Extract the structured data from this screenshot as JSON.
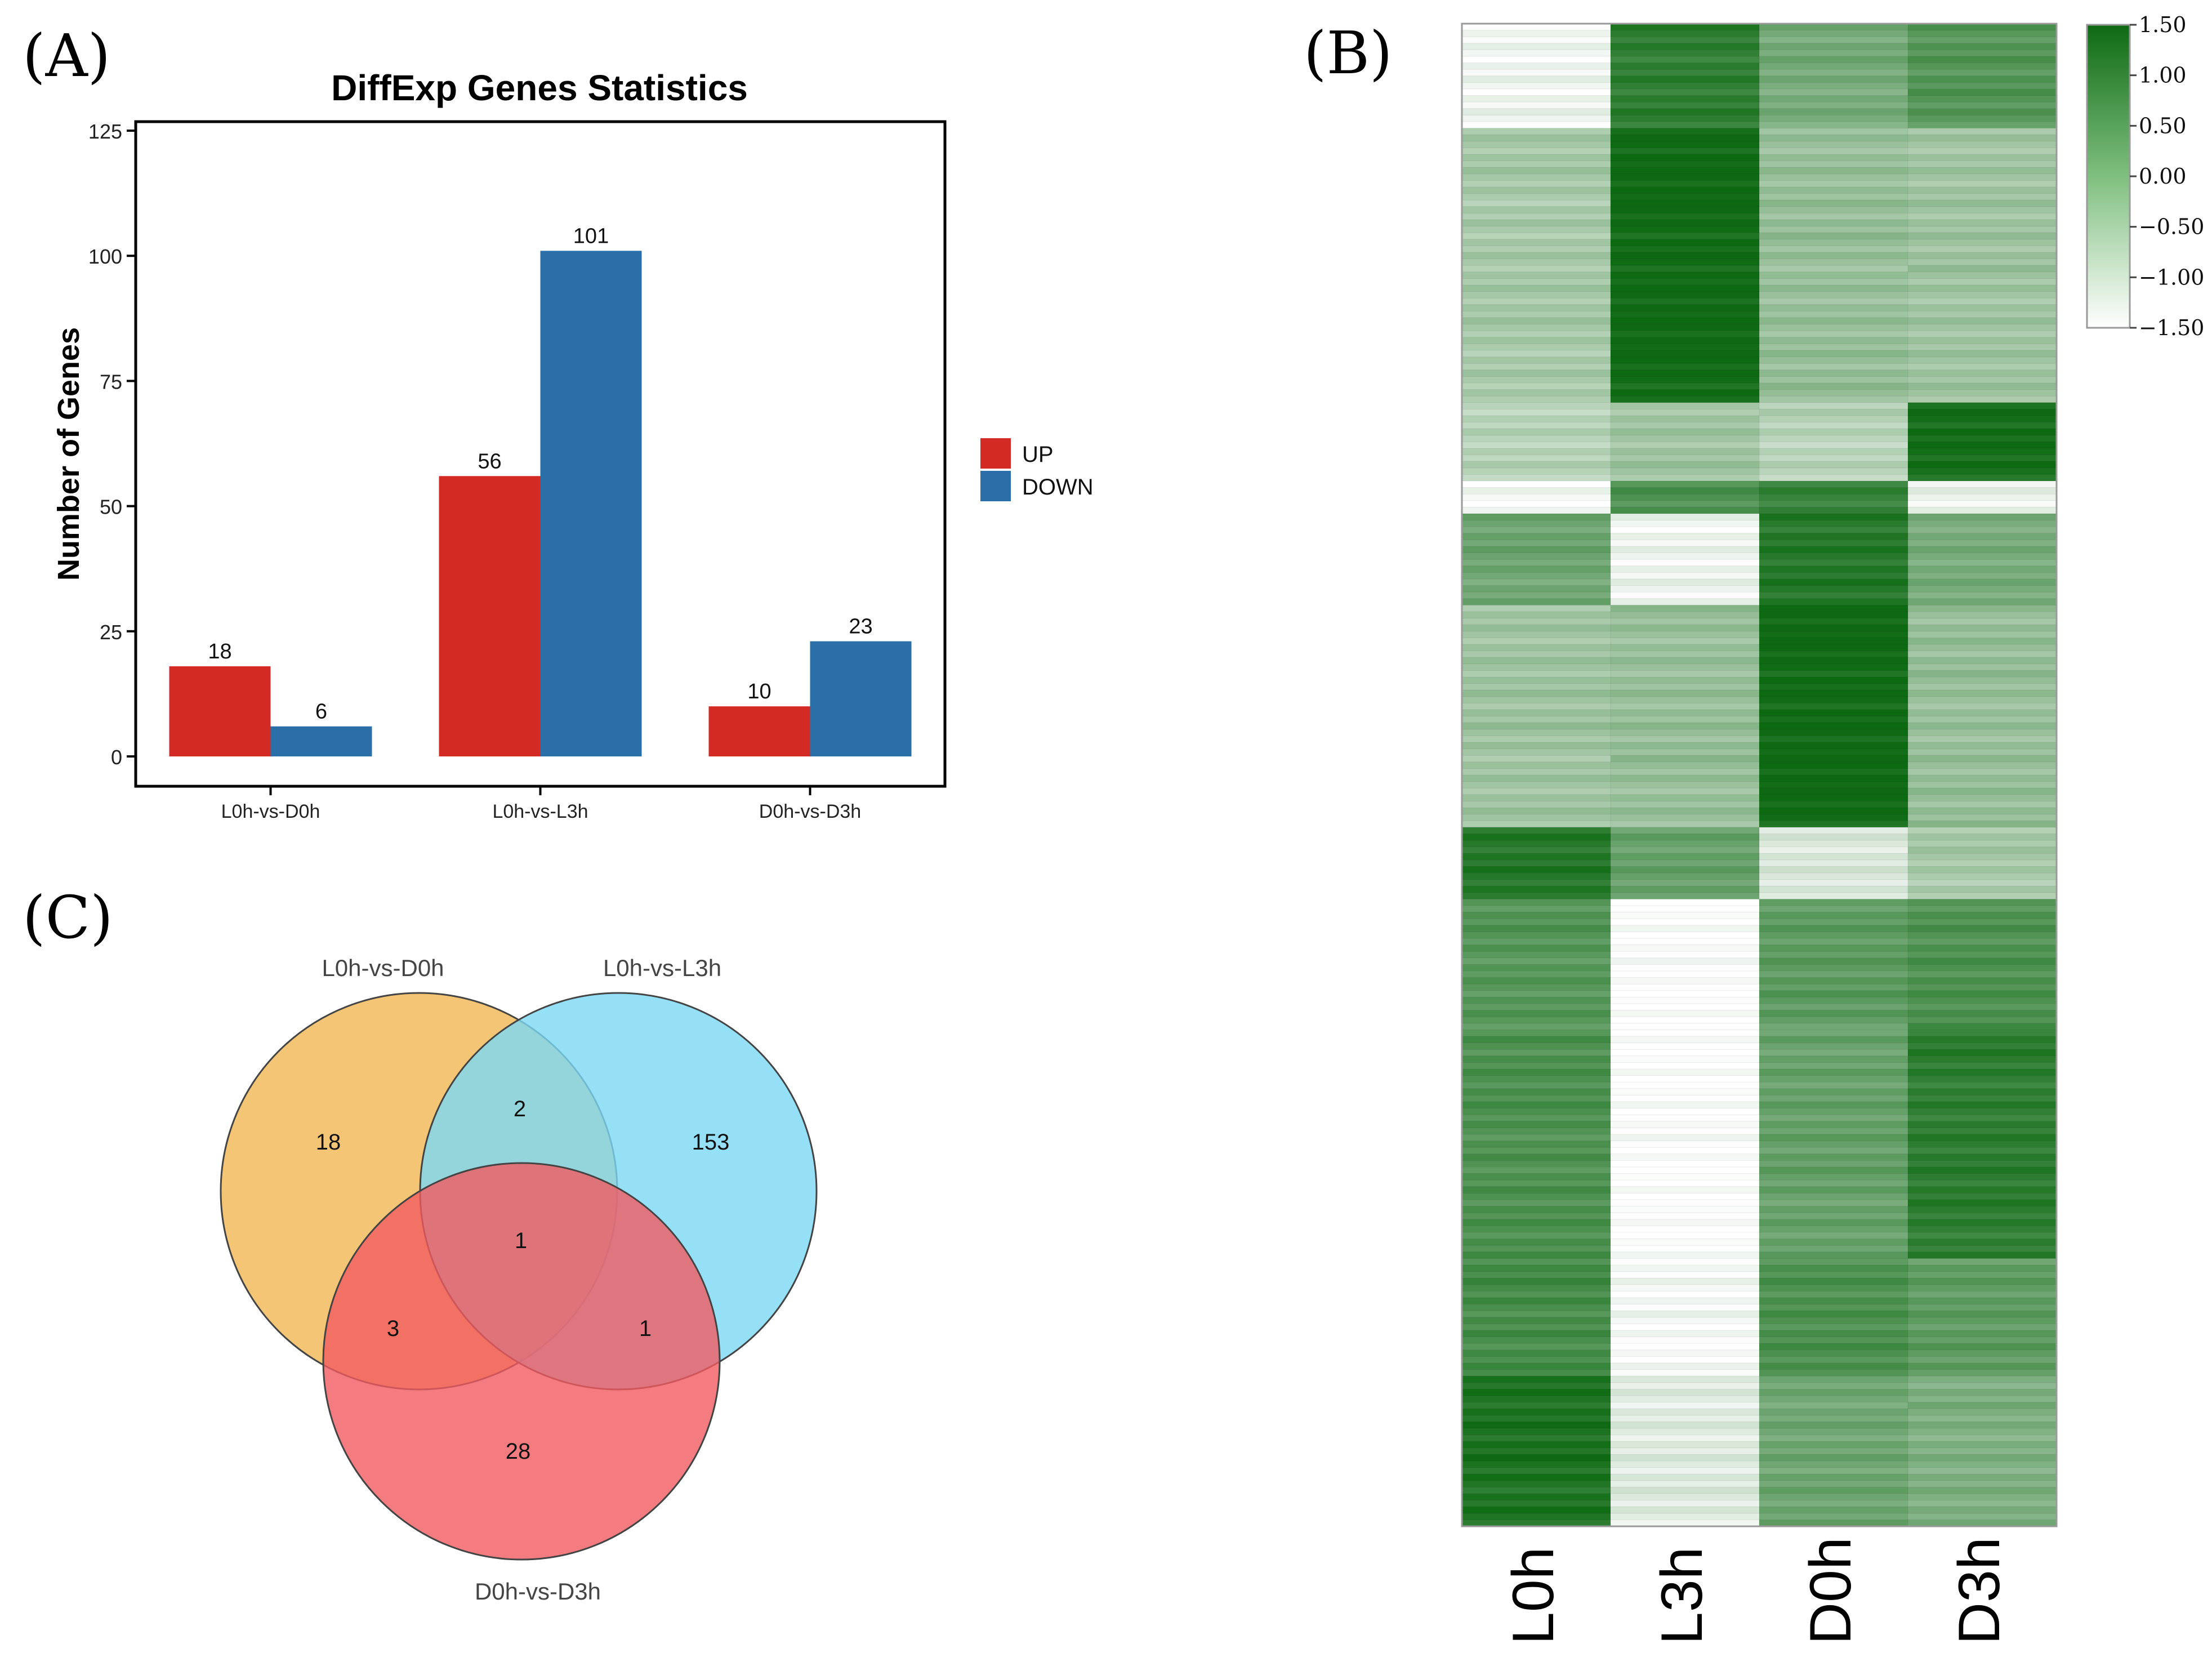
{
  "panel_labels": {
    "a": "(A)",
    "b": "(B)",
    "c": "(C)"
  },
  "colors": {
    "up": "#d42a26",
    "down": "#2a6fa7",
    "venn_a": "#f0b652",
    "venn_b": "#7ad8f5",
    "venn_c": "#f15a60",
    "heat_high": "#0d6a12",
    "heat_low": "#ffffff"
  },
  "chart_data": [
    {
      "type": "bar",
      "title": "DiffExp Genes Statistics",
      "xlabel": "",
      "ylabel": "Number of Genes",
      "ylim": [
        0,
        125
      ],
      "yticks": [
        "0",
        "25",
        "50",
        "75",
        "100",
        "125"
      ],
      "categories": [
        "L0h-vs-D0h",
        "L0h-vs-L3h",
        "D0h-vs-D3h"
      ],
      "series": [
        {
          "name": "UP",
          "values": [
            18,
            56,
            10
          ]
        },
        {
          "name": "DOWN",
          "values": [
            6,
            101,
            23
          ]
        }
      ],
      "legend": "right",
      "grid": false
    },
    {
      "type": "heatmap",
      "columns": [
        "L0h",
        "L3h",
        "D0h",
        "D3h"
      ],
      "colorbar": {
        "min": -1.5,
        "max": 1.5,
        "ticks": [
          "1.50",
          "1.00",
          "0.50",
          "0.00",
          "−0.50",
          "−1.00",
          "−1.50"
        ]
      },
      "row_count": 230,
      "row_blocks": [
        {
          "rows": 16,
          "values": [
            -1.3,
            1.1,
            0.2,
            0.6
          ]
        },
        {
          "rows": 42,
          "values": [
            -0.4,
            1.5,
            -0.2,
            -0.3
          ]
        },
        {
          "rows": 12,
          "values": [
            -0.6,
            -0.3,
            -0.6,
            1.4
          ]
        },
        {
          "rows": 5,
          "values": [
            -1.4,
            0.7,
            1.0,
            -1.2
          ]
        },
        {
          "rows": 14,
          "values": [
            0.3,
            -1.3,
            1.2,
            0.2
          ]
        },
        {
          "rows": 34,
          "values": [
            -0.3,
            -0.2,
            1.5,
            -0.2
          ]
        },
        {
          "rows": 11,
          "values": [
            1.2,
            0.4,
            -1.0,
            -0.4
          ]
        },
        {
          "rows": 20,
          "values": [
            0.6,
            -1.5,
            0.5,
            0.7
          ]
        },
        {
          "rows": 35,
          "values": [
            0.7,
            -1.5,
            0.4,
            1.1
          ]
        },
        {
          "rows": 18,
          "values": [
            0.8,
            -1.4,
            0.7,
            0.5
          ]
        },
        {
          "rows": 23,
          "values": [
            1.3,
            -1.1,
            0.3,
            0.1
          ]
        }
      ]
    },
    {
      "type": "venn",
      "sets": [
        "L0h-vs-D0h",
        "L0h-vs-L3h",
        "D0h-vs-D3h"
      ],
      "regions": {
        "a_only": 18,
        "b_only": 153,
        "c_only": 28,
        "ab": 2,
        "ac": 3,
        "bc": 1,
        "abc": 1
      }
    }
  ]
}
